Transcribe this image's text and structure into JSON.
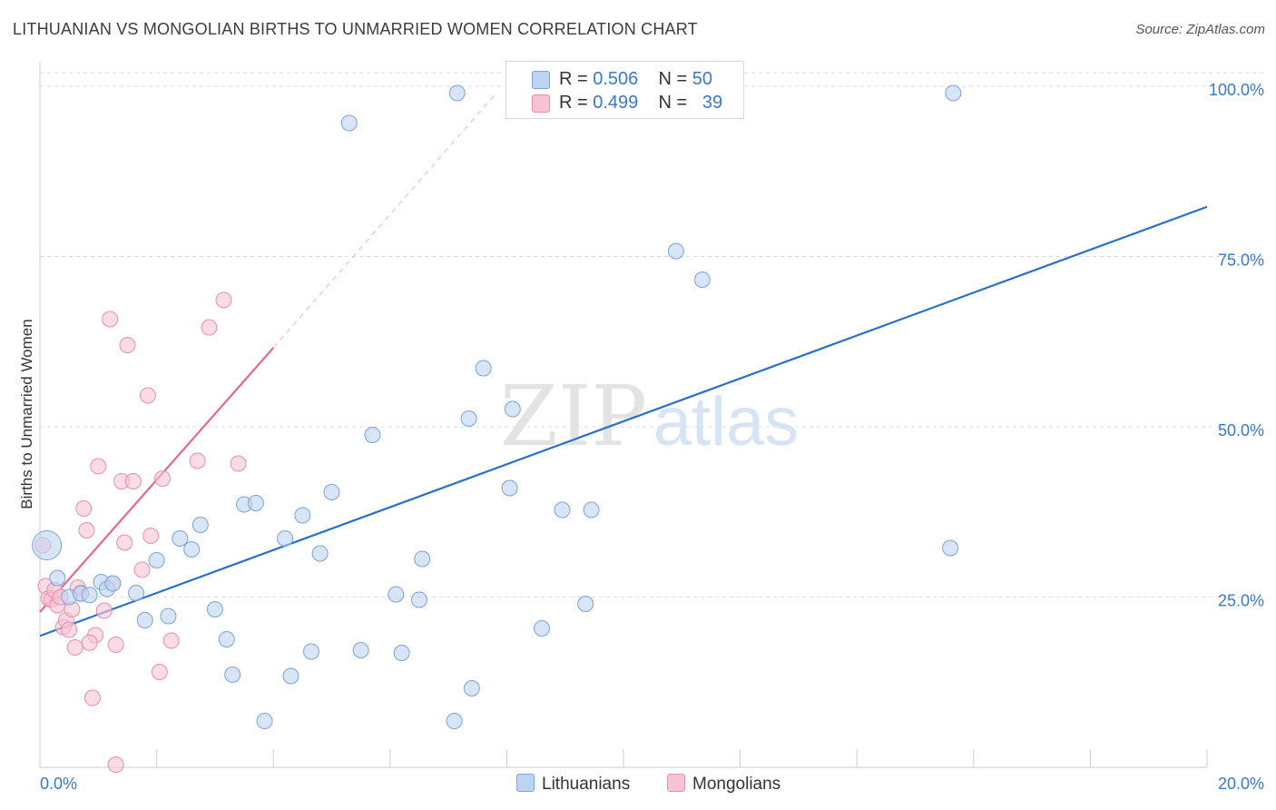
{
  "title": "LITHUANIAN VS MONGOLIAN BIRTHS TO UNMARRIED WOMEN CORRELATION CHART",
  "source": "Source: ZipAtlas.com",
  "watermark": {
    "zip": "ZIP",
    "atlas": "atlas"
  },
  "colors": {
    "blue_fill": "#bcd3f1",
    "blue_stroke": "#7aa4dc",
    "blue_line": "#2a6fcd",
    "pink_fill": "#f8c3d3",
    "pink_stroke": "#e98fab",
    "pink_line": "#e5678f",
    "axis_text": "#3a78c9",
    "grid": "#dddddd"
  },
  "legend": {
    "rows": [
      {
        "r_label": "R = ",
        "r_value": "0.506",
        "n_label": "N = ",
        "n_value": "50"
      },
      {
        "r_label": "R = ",
        "r_value": "0.499",
        "n_label": "N = ",
        "n_value": "39"
      }
    ]
  },
  "chart_data": {
    "type": "scatter",
    "title": "LITHUANIAN VS MONGOLIAN BIRTHS TO UNMARRIED WOMEN CORRELATION CHART",
    "xlabel": "",
    "ylabel": "Births to Unmarried Women",
    "xlim": [
      0,
      20
    ],
    "ylim": [
      0,
      100
    ],
    "x_tick_labels": [
      "0.0%",
      "20.0%"
    ],
    "y_ticks": [
      25,
      50,
      75,
      100
    ],
    "y_tick_labels": [
      "25.0%",
      "50.0%",
      "75.0%",
      "100.0%"
    ],
    "grid": true,
    "legend_position": "top-center",
    "series": [
      {
        "name": "Lithuanians",
        "color": "#7aa4dc",
        "r": 0.506,
        "n": 50,
        "trendline": {
          "x": [
            0,
            20
          ],
          "y": [
            19.3,
            82.3
          ]
        },
        "points": [
          [
            0.12,
            32.6,
            "large"
          ],
          [
            0.3,
            27.8
          ],
          [
            0.5,
            25.0
          ],
          [
            0.7,
            25.5
          ],
          [
            1.05,
            27.2
          ],
          [
            1.15,
            26.2
          ],
          [
            1.25,
            27.0
          ],
          [
            1.65,
            25.6
          ],
          [
            1.8,
            21.6
          ],
          [
            2.0,
            30.4
          ],
          [
            2.2,
            22.2
          ],
          [
            2.4,
            33.6
          ],
          [
            2.6,
            32.0
          ],
          [
            2.75,
            35.6
          ],
          [
            3.0,
            23.2
          ],
          [
            3.2,
            18.8
          ],
          [
            3.3,
            13.6
          ],
          [
            3.5,
            38.6
          ],
          [
            3.7,
            38.8
          ],
          [
            3.85,
            6.8
          ],
          [
            4.2,
            33.6
          ],
          [
            4.3,
            13.4
          ],
          [
            4.5,
            37.0
          ],
          [
            4.65,
            17.0
          ],
          [
            4.8,
            31.4
          ],
          [
            5.0,
            40.4
          ],
          [
            5.3,
            94.6
          ],
          [
            5.5,
            17.2
          ],
          [
            5.7,
            48.8
          ],
          [
            6.1,
            25.4
          ],
          [
            6.2,
            16.8
          ],
          [
            6.5,
            24.6
          ],
          [
            6.55,
            30.6
          ],
          [
            7.1,
            6.8
          ],
          [
            7.15,
            99.0
          ],
          [
            7.35,
            51.2
          ],
          [
            7.4,
            11.6
          ],
          [
            7.6,
            58.6
          ],
          [
            8.05,
            41.0
          ],
          [
            8.1,
            52.6
          ],
          [
            8.6,
            20.4
          ],
          [
            8.95,
            37.8
          ],
          [
            9.35,
            24.0
          ],
          [
            9.45,
            37.8
          ],
          [
            10.9,
            75.8
          ],
          [
            11.35,
            71.6
          ],
          [
            11.9,
            99.0
          ],
          [
            15.6,
            32.2
          ],
          [
            15.65,
            99.0
          ],
          [
            0.85,
            25.3
          ]
        ]
      },
      {
        "name": "Mongolians",
        "color": "#e98fab",
        "r": 0.499,
        "n": 39,
        "trendline": {
          "x": [
            0,
            4.0
          ],
          "y": [
            22.8,
            61.6
          ]
        },
        "trendline_extension": {
          "x": [
            4.0,
            7.8
          ],
          "y": [
            61.6,
            98.8
          ]
        },
        "points": [
          [
            0.05,
            32.6
          ],
          [
            0.1,
            26.6
          ],
          [
            0.15,
            24.8
          ],
          [
            0.2,
            24.6
          ],
          [
            0.25,
            26.0
          ],
          [
            0.3,
            23.8
          ],
          [
            0.35,
            25.0
          ],
          [
            0.4,
            20.6
          ],
          [
            0.45,
            21.6
          ],
          [
            0.5,
            20.2
          ],
          [
            0.55,
            23.2
          ],
          [
            0.6,
            17.6
          ],
          [
            0.65,
            26.4
          ],
          [
            0.7,
            25.6
          ],
          [
            0.75,
            38.0
          ],
          [
            0.8,
            34.8
          ],
          [
            0.9,
            10.2
          ],
          [
            0.95,
            19.4
          ],
          [
            1.0,
            44.2
          ],
          [
            1.1,
            23.0
          ],
          [
            1.2,
            65.8
          ],
          [
            1.25,
            27.0
          ],
          [
            1.3,
            18.0
          ],
          [
            1.4,
            42.0
          ],
          [
            1.45,
            33.0
          ],
          [
            1.5,
            62.0
          ],
          [
            1.6,
            42.0
          ],
          [
            1.75,
            29.0
          ],
          [
            1.85,
            54.6
          ],
          [
            1.9,
            34.0
          ],
          [
            2.05,
            14.0
          ],
          [
            2.1,
            42.4
          ],
          [
            2.25,
            18.6
          ],
          [
            2.7,
            45.0
          ],
          [
            2.9,
            64.6
          ],
          [
            3.15,
            68.6
          ],
          [
            3.4,
            44.6
          ],
          [
            1.3,
            0.4
          ],
          [
            0.85,
            18.3
          ]
        ]
      }
    ]
  },
  "bottom_legend": [
    {
      "label": "Lithuanians"
    },
    {
      "label": "Mongolians"
    }
  ]
}
